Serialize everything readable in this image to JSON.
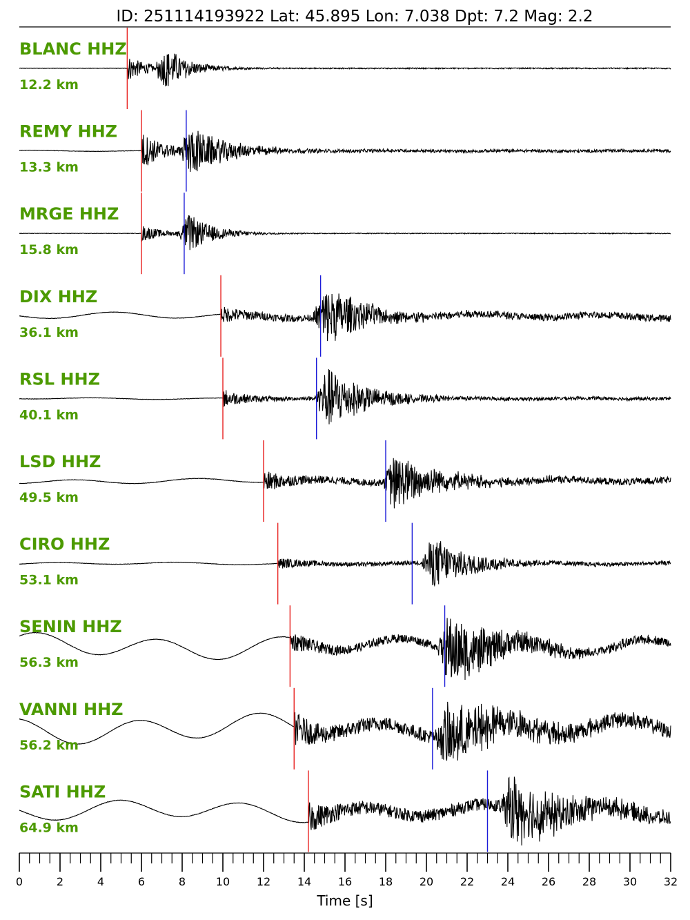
{
  "title": "ID: 251114193922 Lat:  45.895 Lon:   7.038 Dpt:     7.2 Mag:   2.2",
  "colors": {
    "label": "#4c9a00",
    "trace": "#000000",
    "p_pick": "#e8201e",
    "s_pick": "#1c1cd8"
  },
  "chart_data": {
    "type": "line",
    "title": "ID: 251114193922 Lat:  45.895 Lon:   7.038 Dpt:     7.2 Mag:   2.2",
    "xlabel": "Time [s]",
    "ylabel": "",
    "xlim": [
      0,
      32
    ],
    "xticks": [
      0,
      2,
      4,
      6,
      8,
      10,
      12,
      14,
      16,
      18,
      20,
      22,
      24,
      26,
      28,
      30,
      32
    ],
    "minor_tick_step": 0.5,
    "grid": false,
    "traces": [
      {
        "station": "BLANC HHZ",
        "distance": "12.2 km",
        "p_pick": 5.3,
        "s_pick": null
      },
      {
        "station": "REMY HHZ",
        "distance": "13.3 km",
        "p_pick": 6.0,
        "s_pick": 8.2
      },
      {
        "station": "MRGE HHZ",
        "distance": "15.8 km",
        "p_pick": 6.0,
        "s_pick": 8.1
      },
      {
        "station": "DIX HHZ",
        "distance": "36.1 km",
        "p_pick": 9.9,
        "s_pick": 14.8
      },
      {
        "station": "RSL HHZ",
        "distance": "40.1 km",
        "p_pick": 10.0,
        "s_pick": 14.6
      },
      {
        "station": "LSD HHZ",
        "distance": "49.5 km",
        "p_pick": 12.0,
        "s_pick": 18.0
      },
      {
        "station": "CIRO HHZ",
        "distance": "53.1 km",
        "p_pick": 12.7,
        "s_pick": 19.3
      },
      {
        "station": "SENIN HHZ",
        "distance": "56.3 km",
        "p_pick": 13.3,
        "s_pick": 20.9
      },
      {
        "station": "VANNI HHZ",
        "distance": "56.2 km",
        "p_pick": 13.5,
        "s_pick": 20.3
      },
      {
        "station": "SATI HHZ",
        "distance": "64.9 km",
        "p_pick": 14.2,
        "s_pick": 23.0
      }
    ]
  }
}
